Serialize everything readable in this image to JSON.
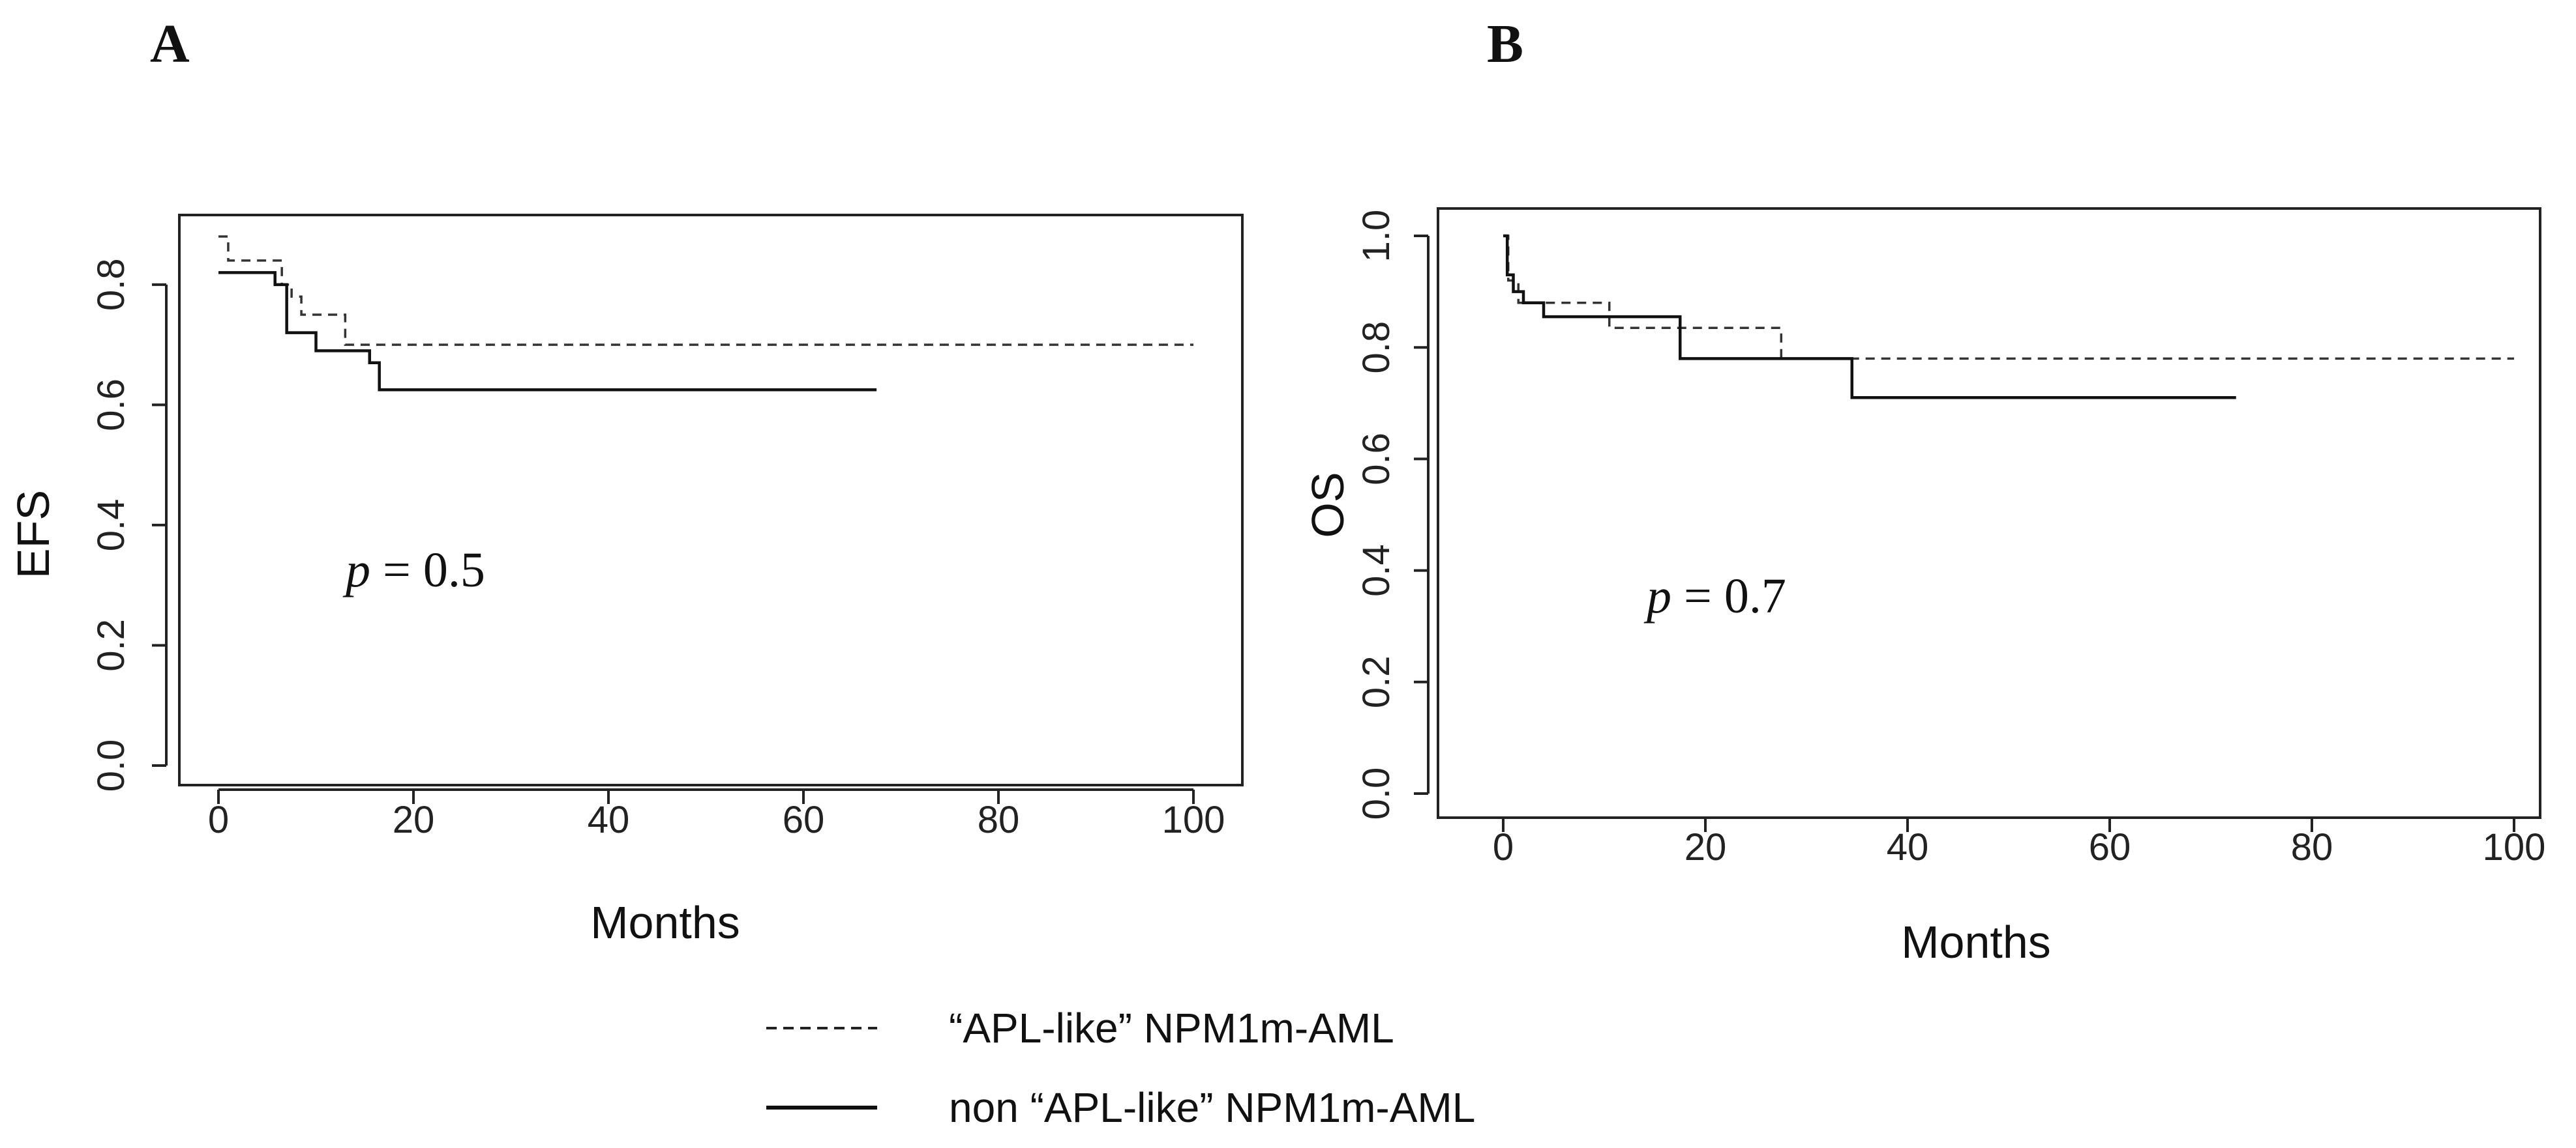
{
  "chart_data": [
    {
      "type": "line",
      "panel": "A",
      "title": "",
      "xlabel": "Months",
      "ylabel": "EFS",
      "xlim": [
        0,
        100
      ],
      "ylim": [
        0.0,
        0.88
      ],
      "xticks": [
        0,
        20,
        40,
        60,
        80,
        100
      ],
      "yticks": [
        0.0,
        0.2,
        0.4,
        0.6,
        0.8
      ],
      "ytick_labels": [
        "0.0",
        "0.2",
        "0.4",
        "0.6",
        "0.8"
      ],
      "annotation": {
        "p": "p",
        "rest": " = 0.5"
      },
      "series": [
        {
          "name": "“APL-like” NPM1m-AML",
          "style": "dashed",
          "step": [
            [
              0,
              0.88
            ],
            [
              1,
              0.84
            ],
            [
              6.5,
              0.8
            ],
            [
              7.5,
              0.78
            ],
            [
              8.5,
              0.75
            ],
            [
              13,
              0.7
            ],
            [
              100,
              0.7
            ]
          ]
        },
        {
          "name": "non “APL-like” NPM1m-AML",
          "style": "solid",
          "step": [
            [
              0,
              0.82
            ],
            [
              5.8,
              0.8
            ],
            [
              7,
              0.72
            ],
            [
              10,
              0.69
            ],
            [
              15.5,
              0.67
            ],
            [
              16.5,
              0.625
            ],
            [
              67.5,
              0.625
            ]
          ]
        }
      ]
    },
    {
      "type": "line",
      "panel": "B",
      "title": "",
      "xlabel": "Months",
      "ylabel": "OS",
      "xlim": [
        0,
        100
      ],
      "ylim": [
        0.0,
        1.0
      ],
      "xticks": [
        0,
        20,
        40,
        60,
        80,
        100
      ],
      "yticks": [
        0.0,
        0.2,
        0.4,
        0.6,
        0.8,
        1.0
      ],
      "ytick_labels": [
        "0.0",
        "0.2",
        "0.4",
        "0.6",
        "0.8",
        "1.0"
      ],
      "annotation": {
        "p": "p",
        "rest": " = 0.7"
      },
      "series": [
        {
          "name": "“APL-like” NPM1m-AML",
          "style": "dashed",
          "step": [
            [
              0,
              1.0
            ],
            [
              0.5,
              0.92
            ],
            [
              1.5,
              0.88
            ],
            [
              10.5,
              0.835
            ],
            [
              27.5,
              0.78
            ],
            [
              100,
              0.78
            ]
          ]
        },
        {
          "name": "non “APL-like” NPM1m-AML",
          "style": "solid",
          "step": [
            [
              0,
              1.0
            ],
            [
              0.4,
              0.93
            ],
            [
              1,
              0.9
            ],
            [
              2,
              0.88
            ],
            [
              4,
              0.855
            ],
            [
              17.5,
              0.78
            ],
            [
              34.5,
              0.71
            ],
            [
              72.5,
              0.71
            ]
          ]
        }
      ]
    }
  ],
  "legend": {
    "dashed_sample": "-------",
    "dashed_label": "“APL-like” NPM1m-AML",
    "solid_label": "non “APL-like” NPM1m-AML"
  }
}
